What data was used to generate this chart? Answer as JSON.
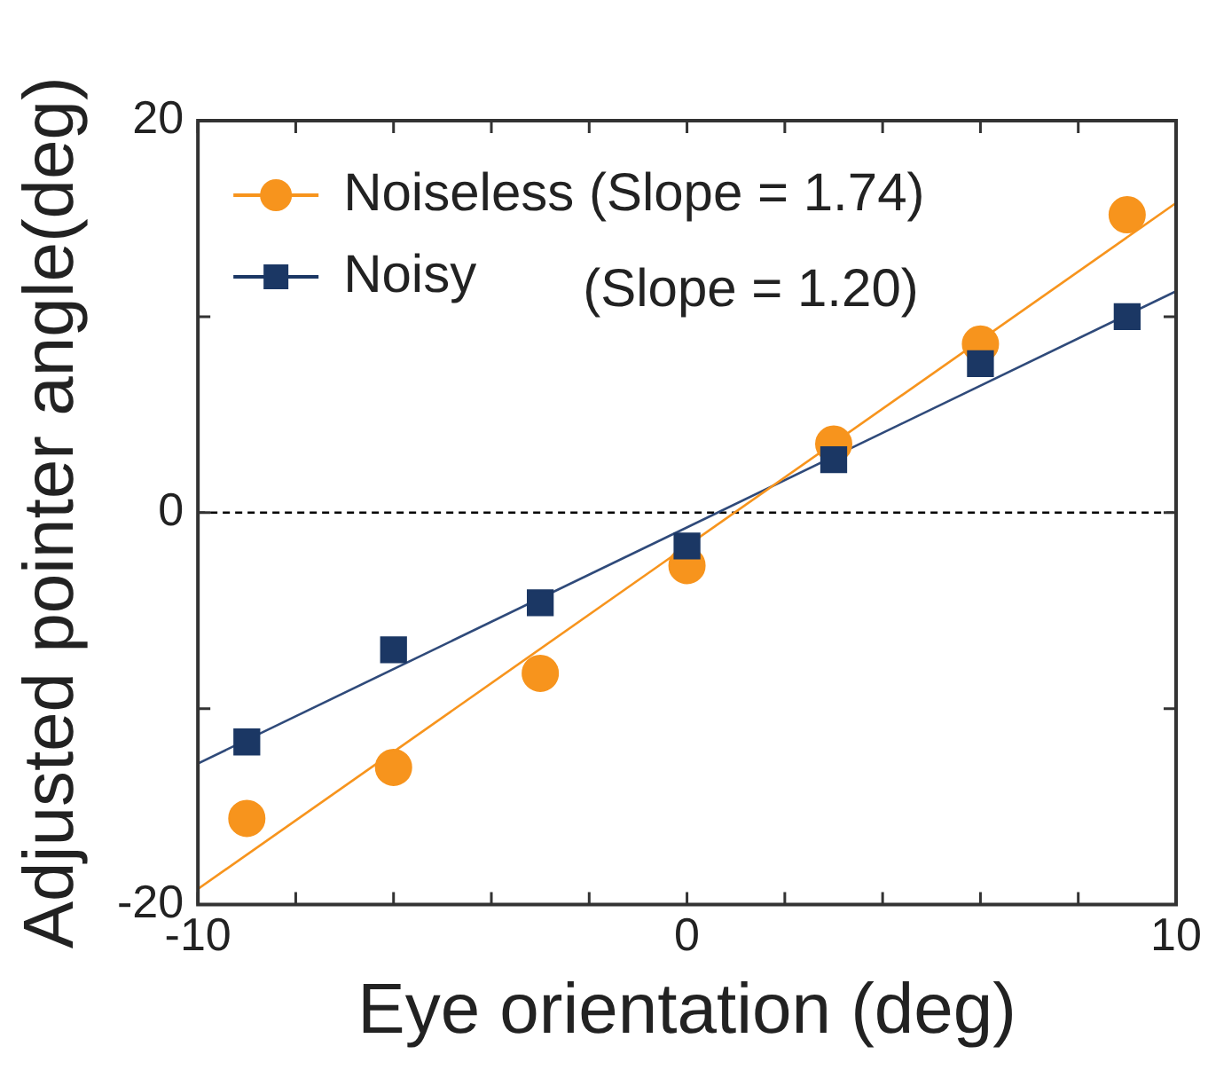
{
  "chart_data": {
    "type": "scatter",
    "xlabel": "Eye orientation (deg)",
    "ylabel": "Adjusted pointer angle(deg)",
    "xlim": [
      -10,
      10
    ],
    "ylim": [
      -20,
      20
    ],
    "xticks": [
      -10,
      {
        "value": -8,
        "label": null
      },
      {
        "value": -6,
        "label": null
      },
      {
        "value": -4,
        "label": null
      },
      {
        "value": -2,
        "label": null
      },
      0,
      {
        "value": 2,
        "label": null
      },
      {
        "value": 4,
        "label": null
      },
      {
        "value": 6,
        "label": null
      },
      {
        "value": 8,
        "label": null
      },
      10
    ],
    "yticks": [
      -20,
      {
        "value": -10,
        "label": null
      },
      0,
      {
        "value": 10,
        "label": null
      },
      20
    ],
    "grid": false,
    "legend": "top left",
    "ref_lines": [
      {
        "axis": "y",
        "value": 0,
        "line_style": "dashed",
        "color": "#000000"
      }
    ],
    "annotations": [
      "(Slope = 1.20)"
    ],
    "series": [
      {
        "name": "Noiseless (Slope = 1.74)",
        "color": "#f7941d",
        "marker": "circle",
        "x": [
          -9,
          -6,
          -3,
          0,
          3,
          6,
          9
        ],
        "values": [
          -15.6,
          -13.0,
          -8.2,
          -2.7,
          3.5,
          8.6,
          15.2
        ]
      },
      {
        "name": "Noisy",
        "color": "#1b3764",
        "marker": "square",
        "x": [
          -9,
          -6,
          -3,
          0,
          3,
          6,
          9
        ],
        "values": [
          -11.7,
          -7.0,
          -4.6,
          -1.7,
          2.7,
          7.6,
          10.0
        ]
      },
      {
        "type": "line",
        "color": "#f7941d",
        "marker": "none",
        "x": [
          -10,
          10
        ],
        "values": [
          -19.2,
          15.8
        ]
      },
      {
        "type": "line",
        "color": "#2f4a7a",
        "marker": "none",
        "x": [
          -10,
          10
        ],
        "values": [
          -12.8,
          11.3
        ]
      }
    ]
  }
}
